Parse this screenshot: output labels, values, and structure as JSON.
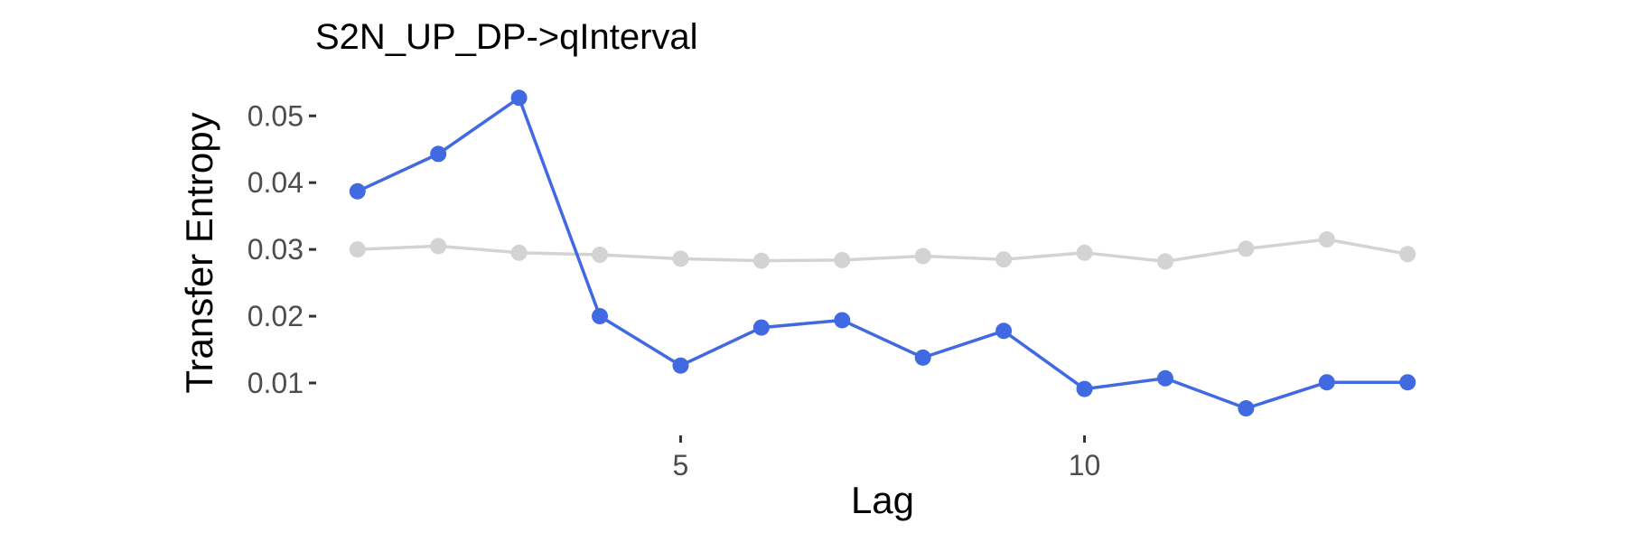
{
  "chart_data": {
    "type": "line",
    "title": "S2N_UP_DP->qInterval",
    "xlabel": "Lag",
    "ylabel": "Transfer Entropy",
    "x": [
      1,
      2,
      3,
      4,
      5,
      6,
      7,
      8,
      9,
      10,
      11,
      12,
      13,
      14
    ],
    "xlim": [
      0.6,
      14.4
    ],
    "ylim": [
      0.0035,
      0.0545
    ],
    "xticks": [
      5,
      10
    ],
    "yticks": [
      0.01,
      0.02,
      0.03,
      0.04,
      0.05
    ],
    "ytick_labels": [
      "0.01",
      "0.02",
      "0.03",
      "0.04",
      "0.05"
    ],
    "xtick_labels": [
      "5",
      "10"
    ],
    "grid": false,
    "legend": "none",
    "series": [
      {
        "color": "#d3d3d3",
        "values": [
          0.03,
          0.0305,
          0.0295,
          0.0292,
          0.0286,
          0.0283,
          0.0284,
          0.029,
          0.0285,
          0.0295,
          0.0282,
          0.0301,
          0.0315,
          0.0293
        ]
      },
      {
        "color": "#4169e1",
        "values": [
          0.0387,
          0.0443,
          0.0527,
          0.02,
          0.0126,
          0.0183,
          0.0194,
          0.0138,
          0.0178,
          0.0091,
          0.0107,
          0.0062,
          0.0101,
          0.0101
        ]
      }
    ]
  }
}
